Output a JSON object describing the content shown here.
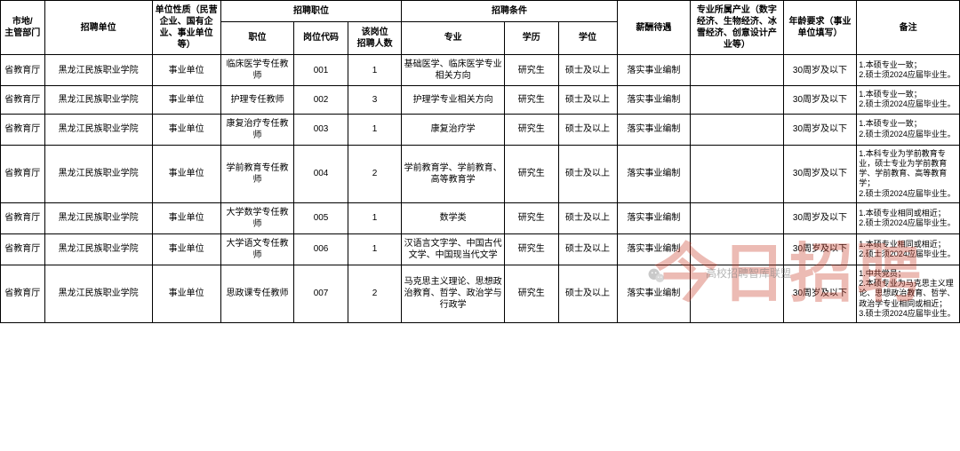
{
  "table": {
    "header": {
      "dept": "市地/\n主管部门",
      "employer": "招聘单位",
      "org_nature": "单位性质（民营企业、国有企业、事业单位等）",
      "position_group": "招聘职位",
      "position": "职位",
      "post_code": "岗位代码",
      "headcount": "该岗位\n招聘人数",
      "condition_group": "招聘条件",
      "major": "专业",
      "education": "学历",
      "degree": "学位",
      "salary": "薪酬待遇",
      "industry": "专业所属产业（数字经济、生物经济、冰雪经济、创意设计产业等）",
      "age": "年龄要求（事业单位填写）",
      "remark": "备注"
    },
    "rows": [
      {
        "dept": "省教育厅",
        "employer": "黑龙江民族职业学院",
        "org_nature": "事业单位",
        "position": "临床医学专任教师",
        "post_code": "001",
        "headcount": "1",
        "major": "基础医学、临床医学专业相关方向",
        "education": "研究生",
        "degree": "硕士及以上",
        "salary": "落实事业编制",
        "industry": "",
        "age": "30周岁及以下",
        "remark": "1.本硕专业一致；\n2.硕士须2024应届毕业生。"
      },
      {
        "dept": "省教育厅",
        "employer": "黑龙江民族职业学院",
        "org_nature": "事业单位",
        "position": "护理专任教师",
        "post_code": "002",
        "headcount": "3",
        "major": "护理学专业相关方向",
        "education": "研究生",
        "degree": "硕士及以上",
        "salary": "落实事业编制",
        "industry": "",
        "age": "30周岁及以下",
        "remark": "1.本硕专业一致；\n2.硕士须2024应届毕业生。"
      },
      {
        "dept": "省教育厅",
        "employer": "黑龙江民族职业学院",
        "org_nature": "事业单位",
        "position": "康复治疗专任教师",
        "post_code": "003",
        "headcount": "1",
        "major": "康复治疗学",
        "education": "研究生",
        "degree": "硕士及以上",
        "salary": "落实事业编制",
        "industry": "",
        "age": "30周岁及以下",
        "remark": "1.本硕专业一致；\n2.硕士须2024应届毕业生。"
      },
      {
        "dept": "省教育厅",
        "employer": "黑龙江民族职业学院",
        "org_nature": "事业单位",
        "position": "学前教育专任教师",
        "post_code": "004",
        "headcount": "2",
        "major": "学前教育学、学前教育、高等教育学",
        "education": "研究生",
        "degree": "硕士及以上",
        "salary": "落实事业编制",
        "industry": "",
        "age": "30周岁及以下",
        "remark": "1.本科专业为学前教育专业，硕士专业为学前教育学、学前教育、高等教育学；\n2.硕士须2024应届毕业生。"
      },
      {
        "dept": "省教育厅",
        "employer": "黑龙江民族职业学院",
        "org_nature": "事业单位",
        "position": "大学数学专任教师",
        "post_code": "005",
        "headcount": "1",
        "major": "数学类",
        "education": "研究生",
        "degree": "硕士及以上",
        "salary": "落实事业编制",
        "industry": "",
        "age": "30周岁及以下",
        "remark": "1.本硕专业相同或相近；\n2.硕士须2024应届毕业生。"
      },
      {
        "dept": "省教育厅",
        "employer": "黑龙江民族职业学院",
        "org_nature": "事业单位",
        "position": "大学语文专任教师",
        "post_code": "006",
        "headcount": "1",
        "major": "汉语言文字学、中国古代文学、中国现当代文学",
        "education": "研究生",
        "degree": "硕士及以上",
        "salary": "落实事业编制",
        "industry": "",
        "age": "30周岁及以下",
        "remark": "1.本硕专业相同或相近；\n2.硕士须2024应届毕业生。"
      },
      {
        "dept": "省教育厅",
        "employer": "黑龙江民族职业学院",
        "org_nature": "事业单位",
        "position": "思政课专任教师",
        "post_code": "007",
        "headcount": "2",
        "major": "马克思主义理论、思想政治教育、哲学、政治学与行政学",
        "education": "研究生",
        "degree": "硕士及以上",
        "salary": "落实事业编制",
        "industry": "",
        "age": "30周岁及以下",
        "remark": "1.中共党员；\n2.本硕专业为马克思主义理论、思想政治教育、哲学、政治学专业相同或相近；\n3.硕士须2024应届毕业生。"
      }
    ]
  },
  "watermark": "今日招聘",
  "wechat_label": "高校招聘智库联盟"
}
